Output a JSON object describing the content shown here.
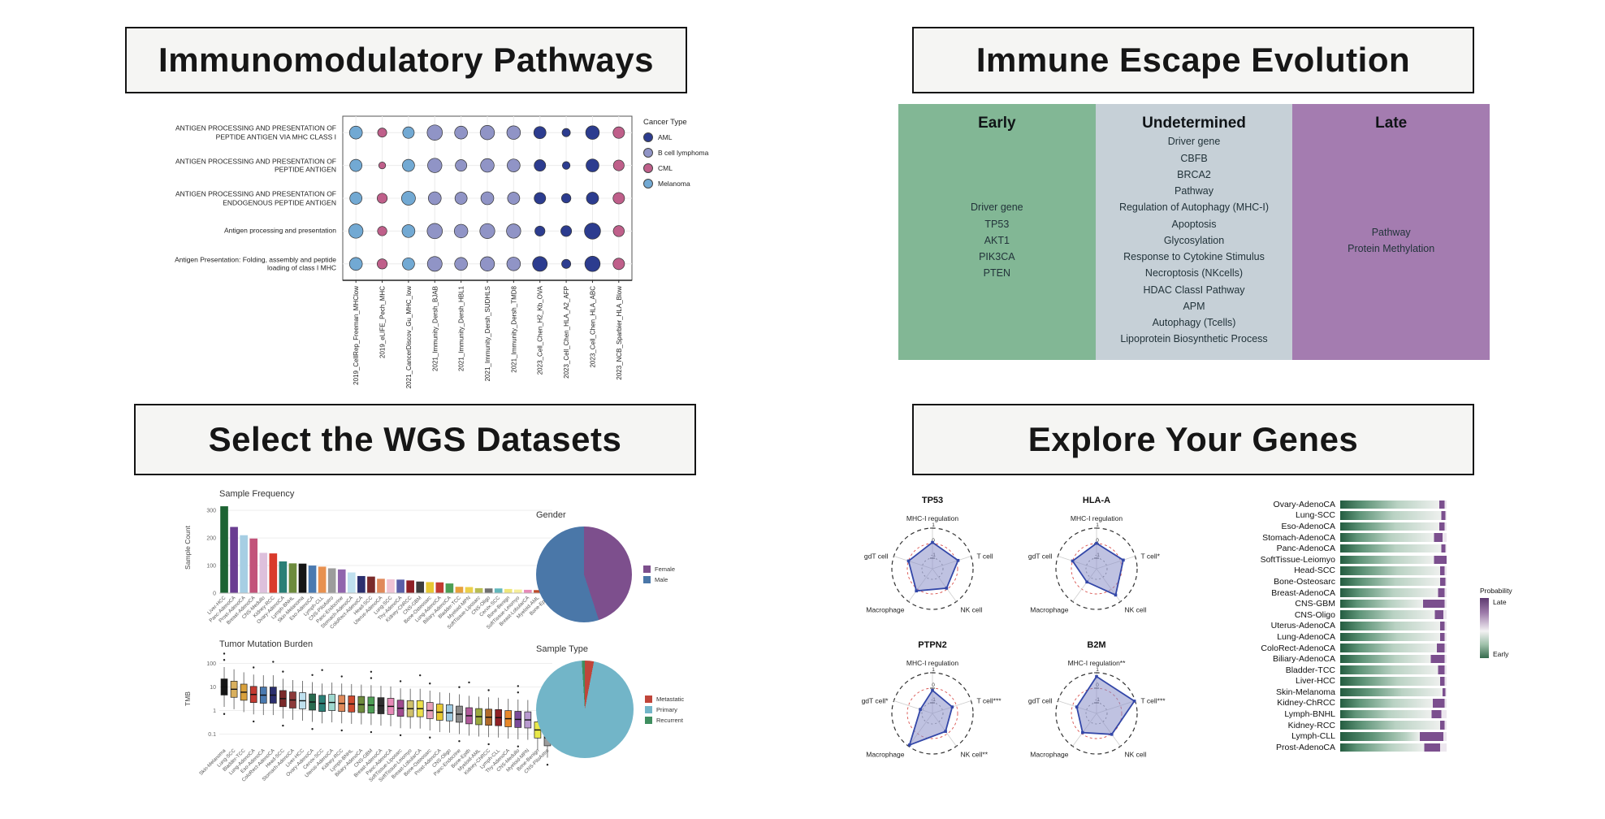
{
  "panels": {
    "immunomodulatory": {
      "title": "Immunomodulatory Pathways"
    },
    "immune_escape": {
      "title": "Immune Escape Evolution"
    },
    "wgs": {
      "title": "Select the WGS Datasets"
    },
    "genes": {
      "title": "Explore Your Genes"
    }
  },
  "chart_data": [
    {
      "id": "dotplot",
      "type": "scatter",
      "variant": "dot-matrix",
      "rows": [
        "ANTIGEN PROCESSING AND PRESENTATION OF PEPTIDE ANTIGEN VIA MHC CLASS I",
        "ANTIGEN PROCESSING AND PRESENTATION OF PEPTIDE ANTIGEN",
        "ANTIGEN PROCESSING AND PRESENTATION OF ENDOGENOUS PEPTIDE ANTIGEN",
        "Antigen processing and presentation",
        "Antigen Presentation: Folding, assembly and peptide loading of class I MHC"
      ],
      "columns": [
        {
          "label": "2019_CellRep_Freeman_MHClow",
          "cancer": "Melanoma"
        },
        {
          "label": "2019_eLIFE_Pech_MHC",
          "cancer": "CML"
        },
        {
          "label": "2021_CancerDiscov_Gu_MHC_low",
          "cancer": "Melanoma"
        },
        {
          "label": "2021_Immunity_Dersh_BJAB",
          "cancer": "B cell lymphoma"
        },
        {
          "label": "2021_Immunity_Dersh_HBL1",
          "cancer": "B cell lymphoma"
        },
        {
          "label": "2021_Immunity_Dersh_SUDHLS",
          "cancer": "B cell lymphoma"
        },
        {
          "label": "2021_Immunity_Dersh_TMD8",
          "cancer": "B cell lymphoma"
        },
        {
          "label": "2023_Cell_Chen_H2_Kb_OVA",
          "cancer": "AML"
        },
        {
          "label": "2023_Cell_Chen_HLA_A2_AFP",
          "cancer": "AML"
        },
        {
          "label": "2023_Cell_Chen_HLA_ABC",
          "cancer": "AML"
        },
        {
          "label": "2023_NCB_Sparbier_HLA_Blow",
          "cancer": "CML"
        }
      ],
      "sizes": [
        [
          0.55,
          0.28,
          0.45,
          0.72,
          0.55,
          0.65,
          0.6,
          0.5,
          0.22,
          0.6,
          0.45
        ],
        [
          0.5,
          0.12,
          0.5,
          0.65,
          0.45,
          0.6,
          0.55,
          0.45,
          0.18,
          0.55,
          0.4
        ],
        [
          0.5,
          0.35,
          0.62,
          0.55,
          0.5,
          0.55,
          0.5,
          0.45,
          0.3,
          0.5,
          0.45
        ],
        [
          0.65,
          0.3,
          0.55,
          0.72,
          0.6,
          0.7,
          0.65,
          0.35,
          0.4,
          0.78,
          0.42
        ],
        [
          0.55,
          0.35,
          0.5,
          0.68,
          0.55,
          0.65,
          0.6,
          0.68,
          0.28,
          0.72,
          0.45
        ]
      ],
      "legend": {
        "title": "Cancer Type",
        "items": [
          {
            "label": "AML",
            "color": "#2c3c8f"
          },
          {
            "label": "B cell lymphoma",
            "color": "#9094c6"
          },
          {
            "label": "CML",
            "color": "#bf5f8a"
          },
          {
            "label": "Melanoma",
            "color": "#72a9d3"
          }
        ]
      }
    },
    {
      "id": "immune_escape",
      "type": "table",
      "columns": [
        {
          "header": "Early",
          "color": "#82b795",
          "items": [
            "Driver gene",
            "TP53",
            "AKT1",
            "PIK3CA",
            "PTEN"
          ]
        },
        {
          "header": "Undetermined",
          "color": "#c6d0d7",
          "items": [
            "Driver gene",
            "CBFB",
            "BRCA2",
            "Pathway",
            "Regulation of Autophagy (MHC-I)",
            "Apoptosis",
            "Glycosylation",
            "Response to Cytokine Stimulus",
            "Necroptosis (NKcells)",
            "HDAC ClassI Pathway",
            "APM",
            "Autophagy (Tcells)",
            "Lipoprotein Biosynthetic Process"
          ]
        },
        {
          "header": "Late",
          "color": "#a47cb0",
          "items": [
            "Pathway",
            "Protein Methylation"
          ]
        }
      ]
    },
    {
      "id": "sample_frequency",
      "type": "bar",
      "title": "Sample Frequency",
      "ylabel": "Sample Count",
      "yticks": [
        0,
        100,
        200,
        300
      ],
      "ylim": [
        0,
        330
      ],
      "categories": [
        "Liver-HCC",
        "Panc-AdenoCA",
        "Prost-AdenoCA",
        "Breast-AdenoCA",
        "CNS-Medullo",
        "Kidney-RCC",
        "Ovary-AdenoCA",
        "Lymph-BNHL",
        "Skin-Melanoma",
        "Eso-AdenoCA",
        "Lymph-CLL",
        "CNS-PiloAstro",
        "Panc-Endocrine",
        "Stomach-AdenoCA",
        "ColoRect-AdenoCA",
        "Head-SCC",
        "Uterus-AdenoCA",
        "Lung-SCC",
        "Thy-AdenoCA",
        "Kidney-ChRCC",
        "CNS-GBM",
        "Bone-Osteosarc",
        "Lung-AdenoCA",
        "Biliary-AdenoCA",
        "Bladder-TCC",
        "Myeloid-MPN",
        "SoftTissue-Liposarc",
        "CNS-Oligo",
        "Cervix-SCC",
        "Bone-Benign",
        "SoftTissue-Leiomyo",
        "Breast-LobularCA",
        "Myeloid-AML",
        "Bone-Epith"
      ],
      "values": [
        315,
        240,
        210,
        198,
        146,
        144,
        115,
        108,
        107,
        100,
        96,
        90,
        86,
        75,
        62,
        60,
        52,
        50,
        49,
        46,
        42,
        40,
        39,
        35,
        23,
        22,
        18,
        17,
        17,
        15,
        13,
        12,
        11,
        10
      ],
      "colors": [
        "#1d6333",
        "#6a3d91",
        "#a6cee3",
        "#c2537a",
        "#ddc0dc",
        "#d93a2b",
        "#2a7f76",
        "#6d8b3d",
        "#151515",
        "#4a7ab0",
        "#e89150",
        "#9c9c9c",
        "#9165ad",
        "#bfe0ee",
        "#2b2f6e",
        "#7a2a2a",
        "#e0895a",
        "#efc3d4",
        "#5a5fa8",
        "#8f2025",
        "#3d3d3d",
        "#e8c832",
        "#c33a30",
        "#4d9e55",
        "#e8a13c",
        "#ecd04a",
        "#b9bd52",
        "#707070",
        "#62b8bc",
        "#efe77a",
        "#f5ee9a",
        "#e88ab8",
        "#bf4b2a",
        "#9aa83e"
      ]
    },
    {
      "id": "gender",
      "type": "pie",
      "title": "Gender",
      "slices": [
        {
          "label": "Female",
          "value": 45,
          "color": "#7d4f8d"
        },
        {
          "label": "Male",
          "value": 55,
          "color": "#4a77a8"
        }
      ]
    },
    {
      "id": "tmb",
      "type": "bar",
      "variant": "boxplot",
      "title": "Tumor Mutation Burden",
      "ylabel": "TMB",
      "yticks": [
        0.1,
        1,
        10,
        100
      ],
      "scale": "log10",
      "categories": [
        "Skin-Melanoma",
        "Lung-SCC",
        "Bladder-TCC",
        "Lung-AdenoCA",
        "Eso-AdenoCA",
        "ColoRect-AdenoCA",
        "Head-SCC",
        "Stomach-AdenoCA",
        "Liver-HCC",
        "Ovary-AdenoCA",
        "Cervix-SCC",
        "Uterus-AdenoCA",
        "Kidney-RCC",
        "Lymph-BNHL",
        "Biliary-AdenoCA",
        "CNS-GBM",
        "Breast-AdenoCA",
        "Panc-AdenoCA",
        "SoftTissue-Liposarc",
        "SoftTissue-Leiomyo",
        "Breast-LobularCA",
        "Bone-Osteosarc",
        "Prost-AdenoCA",
        "CNS-Oligo",
        "Panc-Endocrine",
        "Bone-Epith",
        "Myeloid-AML",
        "Kidney-ChRCC",
        "Lymph-CLL",
        "Thy-AdenoCA",
        "CNS-Medullo",
        "Myeloid-MPN",
        "Bone-Benign",
        "CNS-PiloAstro"
      ],
      "medians": [
        10,
        8,
        6,
        4.8,
        4.5,
        4.5,
        3.2,
        2.8,
        2.6,
        2.3,
        2.0,
        2.2,
        2.0,
        1.9,
        1.8,
        1.7,
        1.6,
        1.5,
        1.25,
        1.2,
        1.2,
        1.0,
        0.85,
        0.8,
        0.7,
        0.6,
        0.55,
        0.52,
        0.5,
        0.45,
        0.42,
        0.4,
        0.15,
        0.07
      ],
      "colors": [
        "#151515",
        "#d9b05e",
        "#d9a13c",
        "#c33a30",
        "#4a7ab0",
        "#2b2f6e",
        "#7a2a2a",
        "#8c3a3a",
        "#bfe0ee",
        "#2a6b4f",
        "#2a7f76",
        "#9fd8cf",
        "#e0895a",
        "#cf4a2e",
        "#6d8b3d",
        "#4d9e55",
        "#2f2f2f",
        "#e88ab8",
        "#a04a8f",
        "#cfc06a",
        "#ece04a",
        "#e8a0b8",
        "#e8c832",
        "#9ecae1",
        "#8a8a8a",
        "#b05a9a",
        "#9aa83e",
        "#b06a2a",
        "#8f2025",
        "#e8882a",
        "#7a4a9a",
        "#b89ad0",
        "#e8e84a",
        "#9c9c9c"
      ]
    },
    {
      "id": "sample_type",
      "type": "pie",
      "title": "Sample Type",
      "slices": [
        {
          "label": "Metastatic",
          "value": 3,
          "color": "#c0453a"
        },
        {
          "label": "Primary",
          "value": 96,
          "color": "#72b5c8"
        },
        {
          "label": "Recurrent",
          "value": 1,
          "color": "#3f8e5f"
        }
      ]
    },
    {
      "id": "radars",
      "type": "scatter",
      "variant": "radar",
      "tick_labels": [
        "1",
        "0",
        "-1"
      ],
      "axes_order": [
        "MHC-I regulation",
        "T cell",
        "NK cell",
        "Macrophage",
        "gdT cell"
      ],
      "charts": [
        {
          "title": "TP53",
          "axes": [
            "MHC-I regulation",
            "T cell",
            "NK cell",
            "Macrophage",
            "gdT cell"
          ],
          "values": [
            0.08,
            0.12,
            -0.08,
            0.15,
            0.0
          ]
        },
        {
          "title": "HLA-A",
          "axes": [
            "MHC-I regulation",
            "T cell*",
            "NK cell",
            "Macrophage",
            "gdT cell"
          ],
          "values": [
            0.02,
            0.2,
            0.5,
            -0.6,
            0.0
          ]
        },
        {
          "title": "PTPN2",
          "axes": [
            "MHC-I regulation",
            "T cell***",
            "NK cell**",
            "Macrophage",
            "gdT cell*"
          ],
          "values": [
            -0.15,
            -0.3,
            -0.2,
            0.95,
            -0.85
          ]
        },
        {
          "title": "B2M",
          "axes": [
            "MHC-I regulation**",
            "T cell***",
            "NK cell",
            "Macrophage",
            "gdT cell"
          ],
          "values": [
            0.8,
            1.0,
            0.05,
            -0.1,
            -0.3
          ]
        }
      ],
      "fill_color": "#8b90c9",
      "stroke_color": "#3347a8",
      "zero_ring_color": "#d9534f"
    },
    {
      "id": "late_probability",
      "type": "bar",
      "variant": "stacked-horizontal",
      "categories": [
        "Ovary-AdenoCA",
        "Lung-SCC",
        "Eso-AdenoCA",
        "Stomach-AdenoCA",
        "Panc-AdenoCA",
        "SoftTissue-Leiomyo",
        "Head-SCC",
        "Bone-Osteosarc",
        "Breast-AdenoCA",
        "CNS-GBM",
        "CNS-Oligo",
        "Uterus-AdenoCA",
        "Lung-AdenoCA",
        "ColoRect-AdenoCA",
        "Biliary-AdenoCA",
        "Bladder-TCC",
        "Liver-HCC",
        "Skin-Melanoma",
        "Kidney-ChRCC",
        "Lymph-BNHL",
        "Kidney-RCC",
        "Lymph-CLL",
        "Prost-AdenoCA"
      ],
      "late_frac": [
        0.05,
        0.04,
        0.05,
        0.08,
        0.04,
        0.12,
        0.04,
        0.05,
        0.06,
        0.2,
        0.08,
        0.04,
        0.04,
        0.07,
        0.13,
        0.06,
        0.04,
        0.03,
        0.11,
        0.09,
        0.04,
        0.22,
        0.15
      ],
      "tail_frac": [
        0.02,
        0.01,
        0.02,
        0.04,
        0.01,
        0.0,
        0.02,
        0.01,
        0.02,
        0.02,
        0.03,
        0.02,
        0.02,
        0.02,
        0.02,
        0.02,
        0.02,
        0.01,
        0.02,
        0.05,
        0.02,
        0.03,
        0.06
      ],
      "dark_frac": [
        22,
        18,
        20,
        16,
        20,
        18,
        22,
        20,
        18,
        16,
        18,
        20,
        22,
        18,
        20,
        18,
        22,
        26,
        18,
        14,
        20,
        30,
        16
      ],
      "late_color": "#7b4f8e",
      "early_color": "#245c40",
      "legend": {
        "title": "Probability",
        "top": "Late",
        "bottom": "Early"
      }
    }
  ]
}
